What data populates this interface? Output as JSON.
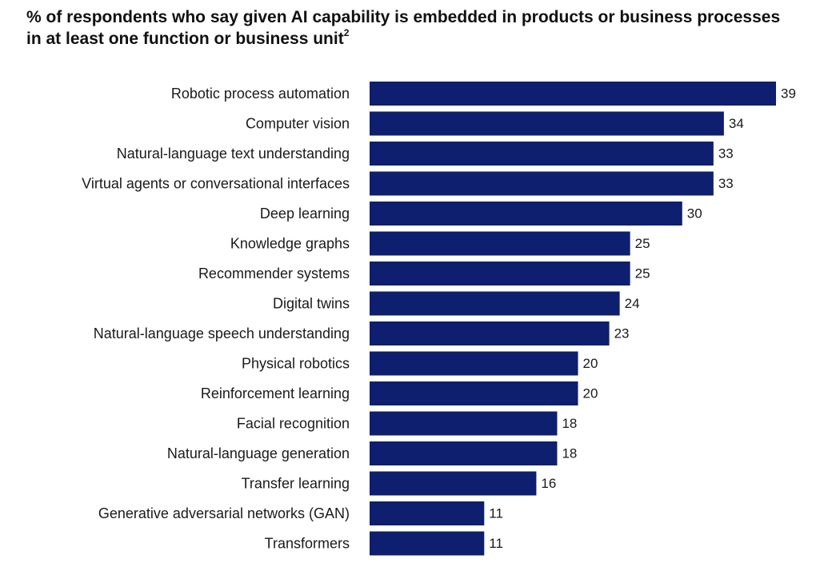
{
  "chart_data": {
    "type": "bar",
    "orientation": "horizontal",
    "title": "% of respondents who say given AI capability is embedded in products or business processes in at least one function or business unit",
    "title_footnote": "2",
    "categories": [
      "Robotic process automation",
      "Computer vision",
      "Natural-language text understanding",
      "Virtual agents or conversational interfaces",
      "Deep learning",
      "Knowledge graphs",
      "Recommender systems",
      "Digital twins",
      "Natural-language speech understanding",
      "Physical robotics",
      "Reinforcement learning",
      "Facial recognition",
      "Natural-language generation",
      "Transfer learning",
      "Generative adversarial networks (GAN)",
      "Transformers"
    ],
    "values": [
      39,
      34,
      33,
      33,
      30,
      25,
      25,
      24,
      23,
      20,
      20,
      18,
      18,
      16,
      11,
      11
    ],
    "xlabel": "",
    "ylabel": "",
    "xlim": [
      0,
      39
    ],
    "grid": false,
    "legend": "none",
    "bar_color": "#0d1f6e"
  }
}
